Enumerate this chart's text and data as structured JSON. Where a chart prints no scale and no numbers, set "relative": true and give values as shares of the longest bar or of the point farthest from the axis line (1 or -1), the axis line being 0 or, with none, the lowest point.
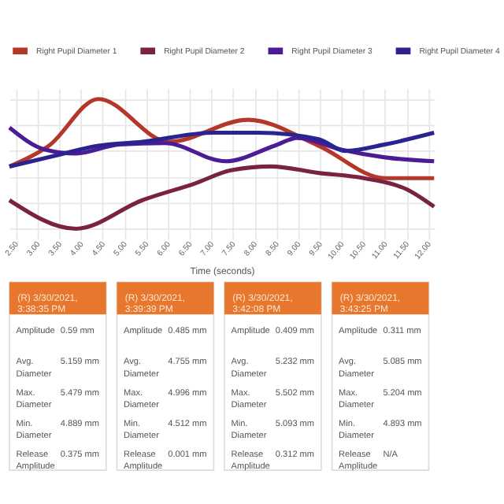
{
  "chart_data": [
    {
      "type": "line",
      "relative": true,
      "xlabel": "Time (seconds)",
      "xlim": [
        2.35,
        12.13
      ],
      "xticks": [
        {
          "value": 2.5,
          "label": "2.50"
        },
        {
          "value": 3.0,
          "label": "3.00"
        },
        {
          "value": 3.5,
          "label": "3.50"
        },
        {
          "value": 4.0,
          "label": "4.00"
        },
        {
          "value": 4.5,
          "label": "4.50"
        },
        {
          "value": 5.0,
          "label": "5.00"
        },
        {
          "value": 5.5,
          "label": "5.50"
        },
        {
          "value": 6.0,
          "label": "6.00"
        },
        {
          "value": 6.5,
          "label": "6.50"
        },
        {
          "value": 7.0,
          "label": "7.00"
        },
        {
          "value": 7.5,
          "label": "7.50"
        },
        {
          "value": 8.0,
          "label": "8.00"
        },
        {
          "value": 8.5,
          "label": "8.50"
        },
        {
          "value": 9.0,
          "label": "9.00"
        },
        {
          "value": 9.5,
          "label": "9.50"
        },
        {
          "value": 10.0,
          "label": "10.00"
        },
        {
          "value": 10.5,
          "label": "10.50"
        },
        {
          "value": 11.0,
          "label": "11.00"
        },
        {
          "value": 11.5,
          "label": "11.50"
        },
        {
          "value": 12.0,
          "label": "12.00"
        }
      ],
      "grid": true,
      "legend": "top",
      "marker": "none",
      "line_style": "solid",
      "series": [
        {
          "name": "Right Pupil Diameter 1",
          "color": "#b5372a",
          "x": [
            2.35,
            3.26,
            4.4,
            6.02,
            7.85,
            9.47,
            11.0,
            12.13
          ],
          "values": [
            0.48,
            0.64,
            1.0,
            0.67,
            0.84,
            0.64,
            0.39,
            0.39
          ]
        },
        {
          "name": "Right Pupil Diameter 2",
          "color": "#7a2340",
          "x": [
            2.35,
            3.88,
            5.41,
            6.63,
            7.45,
            8.37,
            9.47,
            10.51,
            11.52,
            12.13
          ],
          "values": [
            0.22,
            0.0,
            0.22,
            0.35,
            0.45,
            0.48,
            0.43,
            0.39,
            0.3,
            0.17
          ]
        },
        {
          "name": "Right Pupil Diameter 3",
          "color": "#4b1c96",
          "x": [
            2.35,
            3.17,
            3.88,
            4.89,
            5.93,
            7.33,
            8.46,
            8.98,
            9.99,
            11.0,
            12.13
          ],
          "values": [
            0.78,
            0.61,
            0.58,
            0.65,
            0.66,
            0.52,
            0.64,
            0.7,
            0.61,
            0.55,
            0.52
          ]
        },
        {
          "name": "Right Pupil Diameter 4",
          "color": "#2b2490",
          "x": [
            2.35,
            3.36,
            4.4,
            5.41,
            7.03,
            8.07,
            9.47,
            10.08,
            11.0,
            12.13
          ],
          "values": [
            0.48,
            0.56,
            0.64,
            0.67,
            0.74,
            0.74,
            0.69,
            0.6,
            0.65,
            0.74
          ]
        }
      ]
    },
    {
      "type": "other",
      "title": "(R) 3/30/2021, 3:38:35 PM",
      "annotations": [
        "Amplitude",
        "0.59 mm",
        "Avg. Diameter",
        "5.159 mm",
        "Max. Diameter",
        "5.479 mm",
        "Min. Diameter",
        "4.889 mm",
        "Release Amplitude",
        "0.375 mm"
      ]
    },
    {
      "type": "other",
      "title": "(R) 3/30/2021, 3:39:39 PM",
      "annotations": [
        "Amplitude",
        "0.485 mm",
        "Avg. Diameter",
        "4.755 mm",
        "Max. Diameter",
        "4.996 mm",
        "Min. Diameter",
        "4.512 mm",
        "Release Amplitude",
        "0.001 mm"
      ]
    },
    {
      "type": "other",
      "title": "(R) 3/30/2021, 3:42:08 PM",
      "annotations": [
        "Amplitude",
        "0.409 mm",
        "Avg. Diameter",
        "5.232 mm",
        "Max. Diameter",
        "5.502 mm",
        "Min. Diameter",
        "5.093 mm",
        "Release Amplitude",
        "0.312 mm"
      ]
    },
    {
      "type": "other",
      "title": "(R) 3/30/2021, 3:43:25 PM",
      "annotations": [
        "Amplitude",
        "0.311 mm",
        "Avg. Diameter",
        "5.085 mm",
        "Max. Diameter",
        "5.204 mm",
        "Min. Diameter",
        "4.893 mm",
        "Release Amplitude",
        "N/A"
      ]
    }
  ]
}
